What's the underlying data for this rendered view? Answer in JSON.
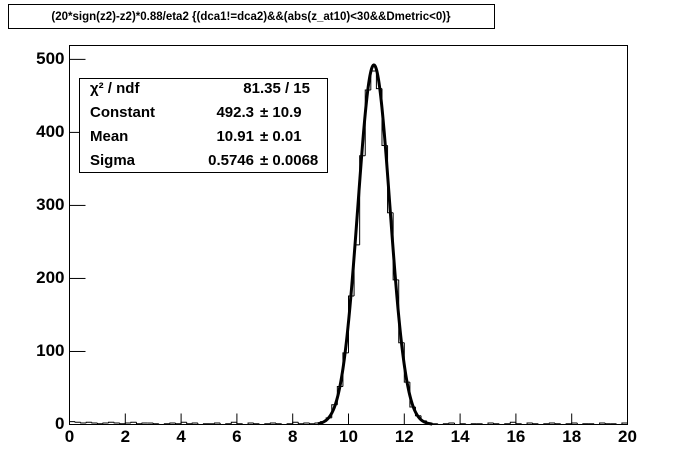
{
  "chart_data": {
    "type": "histogram",
    "title": "(20*sign(z2)-z2)*0.88/eta2 {(dca1!=dca2)&&(abs(z_at10)<30&&Dmetric<0)}",
    "bins": [
      0,
      0.2,
      0.4,
      0.6,
      0.8,
      1,
      1.2,
      1.4,
      1.6,
      1.8,
      2,
      2.2,
      2.4,
      2.6,
      2.8,
      3,
      3.2,
      3.4,
      3.6,
      3.8,
      4,
      4.2,
      4.4,
      4.6,
      4.8,
      5,
      5.2,
      5.4,
      5.6,
      5.8,
      6,
      6.2,
      6.4,
      6.6,
      6.8,
      7,
      7.2,
      7.4,
      7.6,
      7.8,
      8,
      8.2,
      8.4,
      8.6,
      8.8,
      9,
      9.2,
      9.4,
      9.6,
      9.8,
      10,
      10.2,
      10.4,
      10.6,
      10.8,
      11,
      11.2,
      11.4,
      11.6,
      11.8,
      12,
      12.2,
      12.4,
      12.6,
      12.8,
      13,
      13.2,
      13.4,
      13.6,
      13.8,
      14,
      14.2,
      14.4,
      14.6,
      14.8,
      15,
      15.2,
      15.4,
      15.6,
      15.8,
      16,
      16.2,
      16.4,
      16.6,
      16.8,
      17,
      17.2,
      17.4,
      17.6,
      17.8,
      18,
      18.2,
      18.4,
      18.6,
      18.8,
      19,
      19.2,
      19.4,
      19.6,
      19.8,
      20
    ],
    "values": [
      4,
      3,
      2,
      3,
      2,
      1,
      2,
      3,
      2,
      1,
      2,
      3,
      1,
      2,
      2,
      1,
      0,
      1,
      2,
      1,
      3,
      1,
      2,
      0,
      1,
      1,
      2,
      0,
      1,
      3,
      1,
      0,
      2,
      1,
      0,
      1,
      2,
      1,
      0,
      1,
      3,
      1,
      2,
      1,
      2,
      4,
      9,
      27,
      52,
      98,
      176,
      246,
      368,
      458,
      484,
      460,
      382,
      290,
      198,
      112,
      58,
      24,
      12,
      5,
      2,
      1,
      0,
      1,
      2,
      0,
      1,
      0,
      1,
      1,
      0,
      2,
      1,
      0,
      1,
      3,
      1,
      0,
      2,
      1,
      0,
      1,
      2,
      1,
      0,
      1,
      2,
      0,
      1,
      1,
      0,
      2,
      1,
      1,
      0,
      2
    ],
    "color": "#000000",
    "xlim": [
      0,
      20
    ],
    "xticks": [
      0,
      2,
      4,
      6,
      8,
      10,
      12,
      14,
      16,
      18,
      20
    ],
    "ylim": [
      0,
      519
    ],
    "yticks": [
      0,
      100,
      200,
      300,
      400,
      500
    ],
    "fit": {
      "chi2_label": "χ² / ndf",
      "chi2_text": "81.35 / 15",
      "stats": [
        {
          "label": "Constant",
          "value": 492.3,
          "error": "± 10.9"
        },
        {
          "label": "Mean",
          "value": 10.91,
          "error": "± 0.01"
        },
        {
          "label": "Sigma",
          "value": 0.5746,
          "error": "± 0.0068"
        }
      ],
      "range": [
        8.9,
        13.0
      ]
    }
  }
}
